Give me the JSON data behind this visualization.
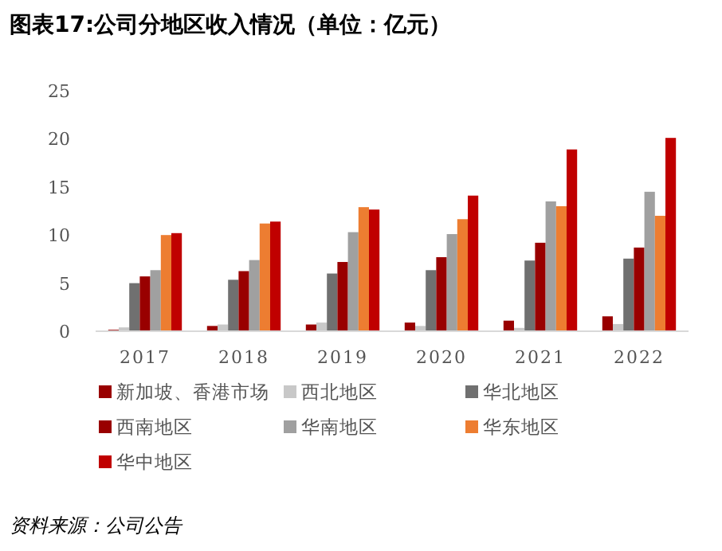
{
  "chart_data": {
    "type": "bar",
    "title": "图表17:公司分地区收入情况（单位：亿元）",
    "categories": [
      "2017",
      "2018",
      "2019",
      "2020",
      "2021",
      "2022"
    ],
    "series": [
      {
        "name": "新加坡、香港市场",
        "color": "#990000",
        "values": [
          0.15,
          0.55,
          0.7,
          0.9,
          1.1,
          1.55
        ]
      },
      {
        "name": "西北地区",
        "color": "#c8c8c8",
        "values": [
          0.4,
          0.7,
          0.9,
          0.55,
          0.35,
          0.75
        ]
      },
      {
        "name": "华北地区",
        "color": "#707070",
        "values": [
          5.0,
          5.35,
          6.0,
          6.35,
          7.35,
          7.55
        ]
      },
      {
        "name": "西南地区",
        "color": "#990000",
        "values": [
          5.7,
          6.25,
          7.2,
          7.7,
          9.2,
          8.7
        ]
      },
      {
        "name": "华南地区",
        "color": "#a0a0a0",
        "values": [
          6.35,
          7.4,
          10.3,
          10.1,
          13.5,
          14.5
        ]
      },
      {
        "name": "华东地区",
        "color": "#ed7d31",
        "values": [
          10.0,
          11.2,
          12.9,
          11.65,
          13.0,
          12.0
        ]
      },
      {
        "name": "华中地区",
        "color": "#c00000",
        "values": [
          10.2,
          11.4,
          12.65,
          14.1,
          18.9,
          20.1
        ]
      }
    ],
    "ylim": [
      0,
      25
    ],
    "yticks": [
      0,
      5,
      10,
      15,
      20,
      25
    ],
    "grid": false,
    "legend": "bottom",
    "annotations": [
      "资料来源：公司公告"
    ]
  }
}
